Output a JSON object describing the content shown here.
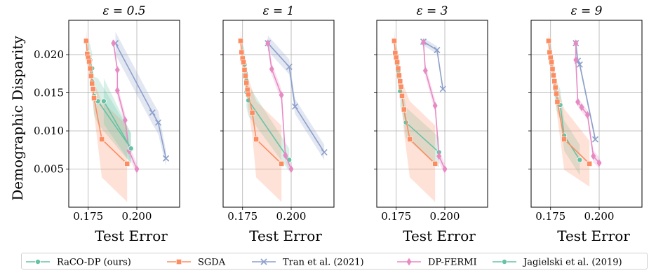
{
  "chart_data": {
    "type": "line",
    "ylabel": "Demographic Disparity",
    "xlabel": "Test Error",
    "xticks": [
      "0.175",
      "0.200"
    ],
    "yticks": [
      "0.005",
      "0.010",
      "0.015",
      "0.020"
    ],
    "xlim": [
      0.165,
      0.222
    ],
    "ylim": [
      0.0,
      0.0245
    ],
    "grid": true,
    "legend_position": "bottom",
    "legend": [
      "RaCO-DP (ours)",
      "SGDA",
      "Tran et al. (2021)",
      "DP-FERMI",
      "Jagielski et al. (2019)"
    ],
    "colors": {
      "raco": "#66c2a5",
      "sgda": "#fc8d62",
      "tran": "#8da0cb",
      "fermi": "#e78ac3",
      "jagielski": "#66c2a5"
    },
    "panels": [
      {
        "title": "ε = 0.5",
        "series": [
          {
            "name": "RaCO-DP (ours)",
            "marker": "circle",
            "color": "#66c2a5",
            "x": [
              0.175,
              0.176,
              0.177,
              0.177,
              0.178,
              0.18,
              0.197
            ],
            "y": [
              0.0202,
              0.0193,
              0.0182,
              0.0165,
              0.0146,
              0.0139,
              0.0077
            ],
            "band": [
              0.002,
              0.002,
              0.002,
              0.002,
              0.0025,
              0.003,
              0.002
            ]
          },
          {
            "name": "SGDA",
            "marker": "square",
            "color": "#fc8d62",
            "x": [
              0.174,
              0.1745,
              0.175,
              0.1755,
              0.176,
              0.1765,
              0.177,
              0.1775,
              0.178,
              0.182,
              0.195
            ],
            "y": [
              0.0218,
              0.0201,
              0.0196,
              0.0191,
              0.0182,
              0.0172,
              0.0162,
              0.0155,
              0.0143,
              0.0089,
              0.0057
            ],
            "band": [
              0.0015,
              0.0015,
              0.0015,
              0.0015,
              0.0015,
              0.0015,
              0.0015,
              0.0015,
              0.002,
              0.005,
              0.005
            ]
          },
          {
            "name": "Tran et al. (2021)",
            "marker": "x",
            "color": "#8da0cb",
            "x": [
              0.189,
              0.208,
              0.211,
              0.215
            ],
            "y": [
              0.0215,
              0.0124,
              0.0111,
              0.0064
            ],
            "band": [
              0.0015,
              0.0015,
              0.0015,
              0.001
            ]
          },
          {
            "name": "DP-FERMI",
            "marker": "diamond",
            "color": "#e78ac3",
            "x": [
              0.188,
              0.19,
              0.19,
              0.194,
              0.196,
              0.2
            ],
            "y": [
              0.0215,
              0.018,
              0.0153,
              0.0114,
              0.0074,
              0.005
            ],
            "band": [
              0.0005,
              0.0005,
              0.0008,
              0.0008,
              0.0008,
              0.0007
            ]
          },
          {
            "name": "Jagielski et al. (2019)",
            "marker": "circle",
            "color": "#66c2a5",
            "x": [
              0.183,
              0.197
            ],
            "y": [
              0.0139,
              0.0077
            ],
            "band": [
              0.003,
              0.002
            ]
          }
        ]
      },
      {
        "title": "ε = 1",
        "series": [
          {
            "name": "RaCO-DP (ours)",
            "marker": "circle",
            "color": "#66c2a5",
            "x": [
              0.175,
              0.176,
              0.1765,
              0.177,
              0.177,
              0.178,
              0.199
            ],
            "y": [
              0.0195,
              0.0187,
              0.0176,
              0.0166,
              0.0151,
              0.014,
              0.0062
            ],
            "band": [
              0.002,
              0.002,
              0.002,
              0.002,
              0.002,
              0.002,
              0.0015
            ]
          },
          {
            "name": "SGDA",
            "marker": "square",
            "color": "#fc8d62",
            "x": [
              0.174,
              0.1745,
              0.175,
              0.1755,
              0.176,
              0.1765,
              0.177,
              0.1775,
              0.178,
              0.18,
              0.182,
              0.195
            ],
            "y": [
              0.0218,
              0.0203,
              0.0195,
              0.019,
              0.018,
              0.0172,
              0.0163,
              0.0154,
              0.0148,
              0.0124,
              0.0089,
              0.0057
            ],
            "band": [
              0.0015,
              0.0015,
              0.0015,
              0.0015,
              0.0015,
              0.0015,
              0.0015,
              0.0015,
              0.002,
              0.003,
              0.005,
              0.005
            ]
          },
          {
            "name": "Tran et al. (2021)",
            "marker": "x",
            "color": "#8da0cb",
            "x": [
              0.188,
              0.199,
              0.202,
              0.217
            ],
            "y": [
              0.0215,
              0.0184,
              0.0132,
              0.0072
            ],
            "band": [
              0.001,
              0.001,
              0.001,
              0.001
            ]
          },
          {
            "name": "DP-FERMI",
            "marker": "diamond",
            "color": "#e78ac3",
            "x": [
              0.188,
              0.19,
              0.195,
              0.197,
              0.2
            ],
            "y": [
              0.0215,
              0.0181,
              0.0147,
              0.0068,
              0.005
            ],
            "band": [
              0.0006,
              0.0008,
              0.0008,
              0.0008,
              0.0007
            ]
          }
        ]
      },
      {
        "title": "ε = 3",
        "series": [
          {
            "name": "RaCO-DP (ours)",
            "marker": "circle",
            "color": "#66c2a5",
            "x": [
              0.175,
              0.1755,
              0.176,
              0.1765,
              0.177,
              0.177,
              0.178,
              0.18,
              0.197
            ],
            "y": [
              0.0195,
              0.0188,
              0.0178,
              0.017,
              0.016,
              0.0152,
              0.0145,
              0.0111,
              0.0072
            ],
            "band": [
              0.002,
              0.002,
              0.002,
              0.002,
              0.002,
              0.002,
              0.002,
              0.002,
              0.002
            ]
          },
          {
            "name": "SGDA",
            "marker": "square",
            "color": "#fc8d62",
            "x": [
              0.174,
              0.1745,
              0.175,
              0.1755,
              0.176,
              0.1765,
              0.177,
              0.1775,
              0.178,
              0.179,
              0.182,
              0.195
            ],
            "y": [
              0.0218,
              0.0202,
              0.0196,
              0.019,
              0.0182,
              0.0173,
              0.0165,
              0.0158,
              0.0146,
              0.0128,
              0.0089,
              0.0057
            ],
            "band": [
              0.0015,
              0.0015,
              0.0015,
              0.0015,
              0.0015,
              0.0015,
              0.0015,
              0.0015,
              0.002,
              0.003,
              0.005,
              0.005
            ]
          },
          {
            "name": "Tran et al. (2021)",
            "marker": "x",
            "color": "#8da0cb",
            "x": [
              0.189,
              0.196,
              0.199
            ],
            "y": [
              0.0217,
              0.0206,
              0.0155
            ],
            "band": [
              0.0005,
              0.0005,
              0.0005
            ]
          },
          {
            "name": "DP-FERMI",
            "marker": "diamond",
            "color": "#e78ac3",
            "x": [
              0.189,
              0.19,
              0.195,
              0.197,
              0.2
            ],
            "y": [
              0.0216,
              0.0179,
              0.0133,
              0.0067,
              0.005
            ],
            "band": [
              0.0007,
              0.0008,
              0.0008,
              0.0008,
              0.0007
            ]
          }
        ]
      },
      {
        "title": "ε = 9",
        "series": [
          {
            "name": "RaCO-DP (ours)",
            "marker": "circle",
            "color": "#66c2a5",
            "x": [
              0.175,
              0.176,
              0.1765,
              0.177,
              0.1775,
              0.178,
              0.18,
              0.182,
              0.19
            ],
            "y": [
              0.0196,
              0.0182,
              0.0174,
              0.0165,
              0.0155,
              0.0147,
              0.0134,
              0.0094,
              0.0062
            ],
            "band": [
              0.002,
              0.002,
              0.002,
              0.002,
              0.002,
              0.002,
              0.002,
              0.002,
              0.002
            ]
          },
          {
            "name": "SGDA",
            "marker": "square",
            "color": "#fc8d62",
            "x": [
              0.174,
              0.1745,
              0.175,
              0.1755,
              0.176,
              0.1765,
              0.177,
              0.1775,
              0.178,
              0.1785,
              0.182,
              0.195
            ],
            "y": [
              0.0218,
              0.0203,
              0.0196,
              0.019,
              0.0181,
              0.0173,
              0.0165,
              0.0157,
              0.0149,
              0.0138,
              0.0089,
              0.0057
            ],
            "band": [
              0.0015,
              0.0015,
              0.0015,
              0.0015,
              0.0015,
              0.0015,
              0.0015,
              0.0015,
              0.0015,
              0.002,
              0.004,
              0.003
            ]
          },
          {
            "name": "Tran et al. (2021)",
            "marker": "x",
            "color": "#8da0cb",
            "x": [
              0.188,
              0.189,
              0.19,
              0.198
            ],
            "y": [
              0.0215,
              0.0192,
              0.0187,
              0.0089
            ],
            "band": [
              0.0005,
              0.0005,
              0.0005,
              0.0005
            ]
          },
          {
            "name": "DP-FERMI",
            "marker": "diamond",
            "color": "#e78ac3",
            "x": [
              0.188,
              0.188,
              0.189,
              0.191,
              0.194,
              0.197,
              0.2
            ],
            "y": [
              0.0215,
              0.0193,
              0.0138,
              0.0131,
              0.0121,
              0.0067,
              0.0058
            ],
            "band": [
              0.0006,
              0.0006,
              0.0006,
              0.0006,
              0.0006,
              0.0008,
              0.0007
            ]
          }
        ]
      }
    ]
  }
}
